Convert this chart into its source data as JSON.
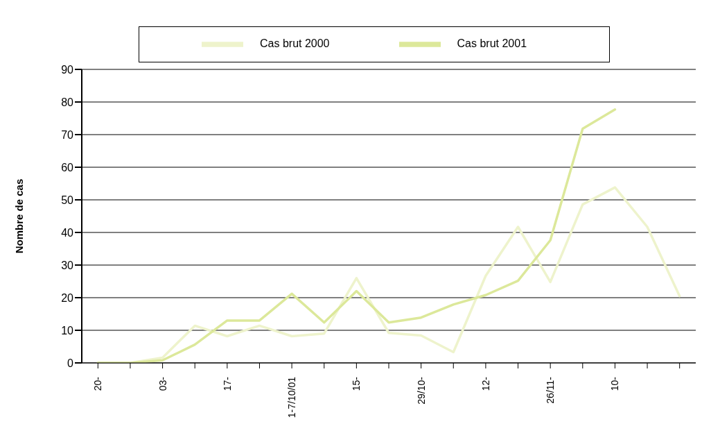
{
  "chart_data": {
    "type": "line",
    "ylabel": "Nombre de cas",
    "categories": [
      "20-",
      null,
      "03-",
      null,
      "17-",
      null,
      "1-7/10/01",
      null,
      "15-",
      null,
      "29/10-",
      null,
      "12-",
      null,
      "26/11-",
      null,
      "10-",
      null,
      null
    ],
    "series": [
      {
        "name": "Cas brut 2000",
        "color": "#eef3cc",
        "values": [
          0,
          0,
          1.6,
          11.4,
          8.2,
          11.4,
          8.2,
          9,
          26,
          9.2,
          8.4,
          3.3,
          26.7,
          41.7,
          24.8,
          48.6,
          53.8,
          41.7,
          20.5
        ]
      },
      {
        "name": "Cas brut 2001",
        "color": "#dce89a",
        "values": [
          0,
          0,
          0.8,
          5.6,
          13,
          13,
          21.2,
          12.4,
          22,
          12.4,
          13.9,
          17.9,
          20.8,
          25.2,
          37.6,
          71.8,
          77.7,
          null,
          null
        ]
      }
    ],
    "ylim": [
      0,
      90
    ],
    "yticks": [
      0,
      10,
      20,
      30,
      40,
      50,
      60,
      70,
      80,
      90
    ],
    "grid": "y",
    "legend": "top",
    "marker": "none",
    "line_style": "solid"
  }
}
